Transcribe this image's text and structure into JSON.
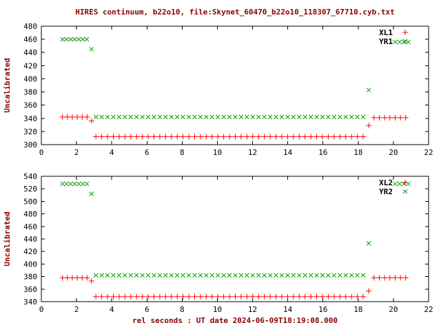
{
  "title": "HIRES continuum, b22o10, file:Skynet_60470_b22o10_118307_67710.cyb.txt",
  "xlabel": "rel seconds : UT date 2024-06-09T18:19:08.000",
  "colors": {
    "red": "#ff0000",
    "green": "#00a300",
    "heading": "#8b0000",
    "tick_text": "#000000",
    "border": "#000000"
  },
  "chart_data": [
    {
      "type": "scatter",
      "ylabel": "Uncalibrated",
      "xlim": [
        0,
        22
      ],
      "xtick_step": 2,
      "ylim": [
        300,
        480
      ],
      "ytick_step": 20,
      "grid": false,
      "legend_position": "top-right-inside",
      "legend": [
        {
          "label": "XL1",
          "color": "red",
          "marker": "plus"
        },
        {
          "label": "YR1",
          "color": "green",
          "marker": "cross"
        }
      ],
      "series": [
        {
          "name": "XL1",
          "color": "red",
          "marker": "plus",
          "runs": [
            {
              "x0": 1.2,
              "dx": 0.28,
              "n": 6,
              "y": 342
            },
            {
              "x0": 2.85,
              "dx": 0,
              "n": 1,
              "y": 336
            },
            {
              "x0": 3.1,
              "dx": 0.33,
              "n": 47,
              "y": 312
            },
            {
              "x0": 18.6,
              "dx": 0,
              "n": 1,
              "y": 329
            },
            {
              "x0": 18.9,
              "dx": 0.3,
              "n": 7,
              "y": 341
            }
          ]
        },
        {
          "name": "YR1",
          "color": "green",
          "marker": "cross",
          "runs": [
            {
              "x0": 1.2,
              "dx": 0.23,
              "n": 7,
              "y": 460
            },
            {
              "x0": 2.85,
              "dx": 0,
              "n": 1,
              "y": 445
            },
            {
              "x0": 3.1,
              "dx": 0.33,
              "n": 47,
              "y": 342
            },
            {
              "x0": 18.6,
              "dx": 0,
              "n": 1,
              "y": 383
            },
            {
              "x0": 20.1,
              "dx": 0.25,
              "n": 4,
              "y": 456
            }
          ]
        }
      ]
    },
    {
      "type": "scatter",
      "ylabel": "Uncalibrated",
      "xlim": [
        0,
        22
      ],
      "xtick_step": 2,
      "ylim": [
        340,
        540
      ],
      "ytick_step": 20,
      "grid": false,
      "legend_position": "top-right-inside",
      "legend": [
        {
          "label": "XL2",
          "color": "red",
          "marker": "plus"
        },
        {
          "label": "YR2",
          "color": "green",
          "marker": "cross"
        }
      ],
      "series": [
        {
          "name": "XL2",
          "color": "red",
          "marker": "plus",
          "runs": [
            {
              "x0": 1.2,
              "dx": 0.28,
              "n": 6,
              "y": 378
            },
            {
              "x0": 2.85,
              "dx": 0,
              "n": 1,
              "y": 373
            },
            {
              "x0": 3.1,
              "dx": 0.33,
              "n": 47,
              "y": 348
            },
            {
              "x0": 18.6,
              "dx": 0,
              "n": 1,
              "y": 357
            },
            {
              "x0": 18.9,
              "dx": 0.3,
              "n": 7,
              "y": 378
            }
          ]
        },
        {
          "name": "YR2",
          "color": "green",
          "marker": "cross",
          "runs": [
            {
              "x0": 1.2,
              "dx": 0.23,
              "n": 7,
              "y": 528
            },
            {
              "x0": 2.85,
              "dx": 0,
              "n": 1,
              "y": 512
            },
            {
              "x0": 3.1,
              "dx": 0.33,
              "n": 47,
              "y": 382
            },
            {
              "x0": 18.6,
              "dx": 0,
              "n": 1,
              "y": 433
            },
            {
              "x0": 20.1,
              "dx": 0.25,
              "n": 4,
              "y": 528
            }
          ]
        }
      ]
    }
  ]
}
